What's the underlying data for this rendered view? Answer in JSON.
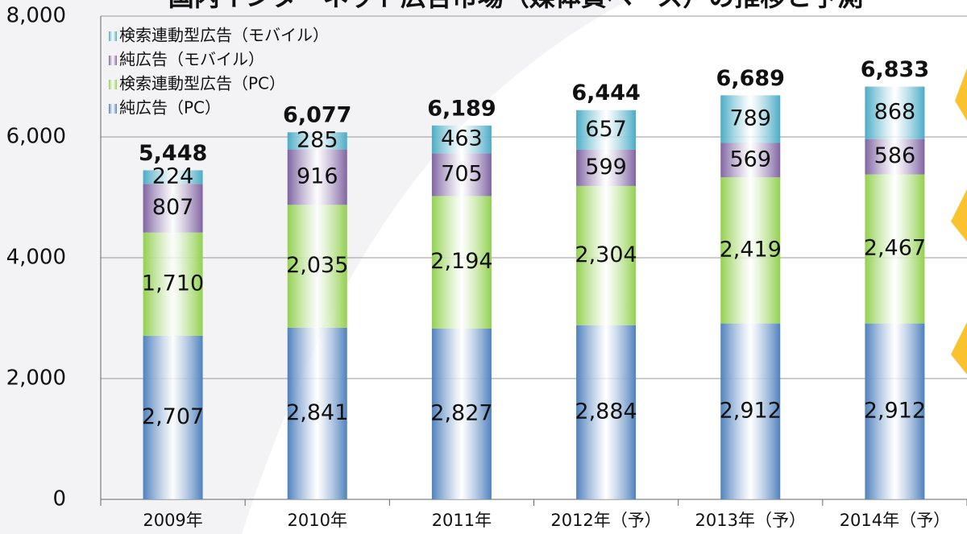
{
  "chart_data": {
    "type": "stacked-bar",
    "title": "国内インターネット広告市場（媒体費ベース）の推移と予測",
    "categories": [
      "2009年",
      "2010年",
      "2011年",
      "2012年（予）",
      "2013年（予）",
      "2014年（予）"
    ],
    "series": [
      {
        "name": "純広告（PC）",
        "color": "#4f81bd",
        "values": [
          2707,
          2841,
          2827,
          2884,
          2912,
          2912
        ],
        "value_labels": [
          "2,707",
          "2,841",
          "2,827",
          "2,884",
          "2,912",
          "2,912"
        ]
      },
      {
        "name": "検索連動型広告（PC）",
        "color": "#92d050",
        "values": [
          1710,
          2035,
          2194,
          2304,
          2419,
          2467
        ],
        "value_labels": [
          "1,710",
          "2,035",
          "2,194",
          "2,304",
          "2,419",
          "2,467"
        ]
      },
      {
        "name": "純広告（モバイル）",
        "color": "#8064a2",
        "values": [
          807,
          916,
          705,
          599,
          569,
          586
        ]
      },
      {
        "name": "検索連動型広告（モバイル）",
        "color": "#4bacc6",
        "values": [
          224,
          285,
          463,
          657,
          789,
          868
        ]
      }
    ],
    "totals": [
      5448,
      6077,
      6189,
      6444,
      6689,
      6833
    ],
    "total_labels": [
      "5,448",
      "6,077",
      "6,189",
      "6,444",
      "6,689",
      "6,833"
    ],
    "ylim": [
      0,
      8000
    ],
    "yticks": [
      0,
      {
        "value": 2000,
        "label": "2,000"
      },
      {
        "value": 4000,
        "label": "4,000"
      },
      {
        "value": 6000,
        "label": "6,000"
      },
      {
        "value": 8000,
        "label": "8,000"
      }
    ],
    "grid": true,
    "legend": "top-left"
  }
}
